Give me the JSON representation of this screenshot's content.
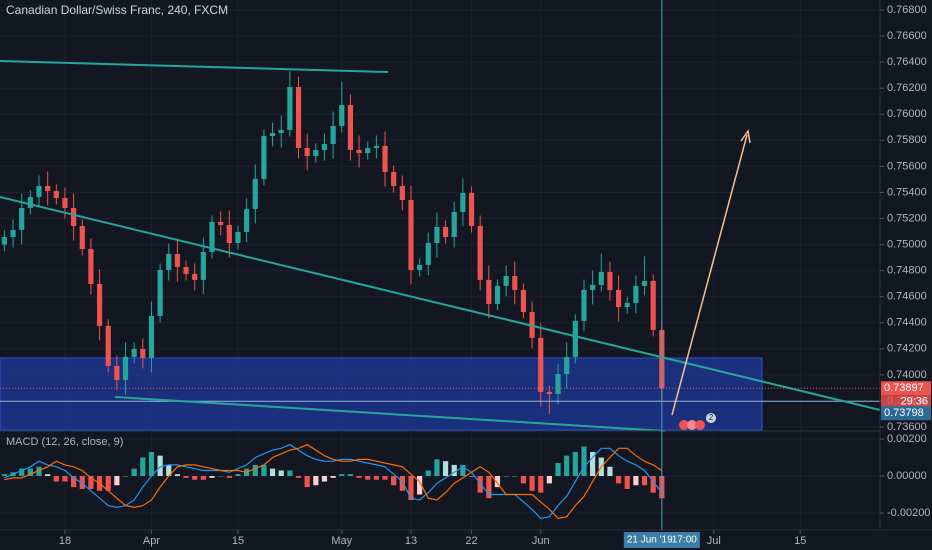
{
  "chart_data": [
    {
      "type": "candlestick",
      "title": "Canadian Dollar/Swiss Franc, 240, FXCM",
      "x": [
        -7,
        -6,
        -5,
        -4,
        -3,
        -2,
        -1,
        0,
        1,
        2,
        3,
        4,
        5,
        6,
        7,
        8,
        9,
        10,
        11,
        12,
        13,
        14,
        15,
        16,
        17,
        18,
        19,
        20,
        21,
        22,
        23,
        24,
        25,
        26,
        27,
        28,
        29,
        30,
        31,
        32,
        33,
        34,
        35,
        36,
        37,
        38,
        39,
        40,
        41,
        42,
        43,
        44,
        45,
        46,
        47,
        48,
        49,
        50,
        51,
        52,
        53,
        54,
        55,
        56,
        57,
        58,
        59,
        60,
        61,
        62,
        63,
        64,
        65,
        66,
        67,
        68,
        69
      ],
      "open": [
        0.75,
        0.75058,
        0.75112,
        0.75281,
        0.75365,
        0.7545,
        0.75411,
        0.75358,
        0.75281,
        0.75143,
        0.74966,
        0.74698,
        0.74376,
        0.74069,
        0.73961,
        0.74138,
        0.74199,
        0.7413,
        0.74452,
        0.74805,
        0.74928,
        0.74828,
        0.74775,
        0.74729,
        0.74943,
        0.75174,
        0.75151,
        0.75012,
        0.75097,
        0.75273,
        0.75504,
        0.75833,
        0.75856,
        0.7588,
        0.76209,
        0.75741,
        0.7568,
        0.75726,
        0.75772,
        0.7591,
        0.76071,
        0.75726,
        0.75702,
        0.75741,
        0.75757,
        0.75557,
        0.7545,
        0.75342,
        0.74805,
        0.74844,
        0.75012,
        0.75135,
        0.75058,
        0.7525,
        0.75396,
        0.75143,
        0.74729,
        0.74544,
        0.74683,
        0.74759,
        0.74652,
        0.74483,
        0.74284,
        0.73869,
        0.73854,
        0.74007,
        0.74138,
        0.74414,
        0.74652,
        0.7469,
        0.7479,
        0.74652,
        0.74521,
        0.74552,
        0.74683,
        0.74721,
        0.74345
      ],
      "high": [
        0.75108,
        0.75192,
        0.75391,
        0.75415,
        0.7553,
        0.75561,
        0.75461,
        0.75438,
        0.75392,
        0.75193,
        0.75046,
        0.74809,
        0.74426,
        0.74149,
        0.74249,
        0.74249,
        0.74279,
        0.74563,
        0.74855,
        0.75008,
        0.75039,
        0.74878,
        0.74855,
        0.75054,
        0.75224,
        0.75254,
        0.75262,
        0.75147,
        0.75353,
        0.75615,
        0.75883,
        0.75936,
        0.75991,
        0.7633,
        0.76289,
        0.75852,
        0.75776,
        0.75852,
        0.76021,
        0.7625,
        0.76151,
        0.75837,
        0.75791,
        0.75837,
        0.75868,
        0.75607,
        0.7553,
        0.75453,
        0.74894,
        0.75092,
        0.75246,
        0.75185,
        0.7533,
        0.75507,
        0.75446,
        0.75223,
        0.7484,
        0.74733,
        0.74839,
        0.7487,
        0.74702,
        0.74563,
        0.74395,
        0.73919,
        0.74087,
        0.74249,
        0.74464,
        0.74732,
        0.74801,
        0.7493,
        0.7487,
        0.74763,
        0.74602,
        0.74763,
        0.7491,
        0.74771,
        0.74425
      ],
      "low": [
        0.7495,
        0.74978,
        0.75002,
        0.75231,
        0.75285,
        0.75301,
        0.75308,
        0.75201,
        0.75032,
        0.74916,
        0.74618,
        0.74265,
        0.74019,
        0.73881,
        0.7385,
        0.74088,
        0.7405,
        0.74019,
        0.74402,
        0.74725,
        0.74717,
        0.74725,
        0.74649,
        0.74618,
        0.74893,
        0.75071,
        0.74901,
        0.74962,
        0.75017,
        0.75162,
        0.75454,
        0.75753,
        0.75745,
        0.7583,
        0.75661,
        0.75569,
        0.7563,
        0.75646,
        0.75661,
        0.7586,
        0.75646,
        0.75591,
        0.75652,
        0.75661,
        0.75446,
        0.754,
        0.75262,
        0.74694,
        0.74755,
        0.74764,
        0.74901,
        0.75008,
        0.74978,
        0.75139,
        0.75093,
        0.74649,
        0.74433,
        0.74494,
        0.74603,
        0.74541,
        0.74433,
        0.74204,
        0.73758,
        0.737,
        0.73774,
        0.73896,
        0.74088,
        0.74334,
        0.74541,
        0.7464,
        0.74572,
        0.7441,
        0.74471,
        0.74472,
        0.7461,
        0.74295,
        0.7378
      ],
      "close": [
        0.75058,
        0.75112,
        0.75281,
        0.75365,
        0.7545,
        0.75411,
        0.75358,
        0.75281,
        0.75143,
        0.74966,
        0.74698,
        0.74376,
        0.74069,
        0.73961,
        0.74138,
        0.74199,
        0.7413,
        0.74452,
        0.74805,
        0.74928,
        0.74828,
        0.74775,
        0.74729,
        0.74943,
        0.75174,
        0.75151,
        0.75012,
        0.75097,
        0.75273,
        0.75504,
        0.75833,
        0.75856,
        0.7588,
        0.76209,
        0.75741,
        0.7568,
        0.75726,
        0.75772,
        0.7591,
        0.76071,
        0.75726,
        0.75702,
        0.75741,
        0.75757,
        0.75557,
        0.7545,
        0.75342,
        0.74805,
        0.74844,
        0.75012,
        0.75135,
        0.75058,
        0.7525,
        0.75396,
        0.75143,
        0.74729,
        0.74544,
        0.74683,
        0.74759,
        0.74652,
        0.74483,
        0.74284,
        0.73869,
        0.73854,
        0.74007,
        0.74138,
        0.74414,
        0.74652,
        0.7469,
        0.7479,
        0.74652,
        0.74521,
        0.74552,
        0.74683,
        0.74721,
        0.74345,
        0.73897
      ],
      "up_color": "#26a69a",
      "down_color": "#ef5350",
      "xlim": [
        -7.51,
        94.22
      ],
      "xticks": [
        {
          "value": 0,
          "label": "18"
        },
        {
          "value": 10,
          "label": "Apr"
        },
        {
          "value": 20,
          "label": "15"
        },
        {
          "value": 32,
          "label": "May"
        },
        {
          "value": 40,
          "label": "13"
        },
        {
          "value": 47,
          "label": "22"
        },
        {
          "value": 55,
          "label": "Jun"
        },
        {
          "value": 75,
          "label": "Jul"
        },
        {
          "value": 85,
          "label": "15"
        }
      ],
      "ylim": [
        0.73577,
        0.76877
      ],
      "yticks": [
        {
          "value": 0.768,
          "label": "0.76800"
        },
        {
          "value": 0.766,
          "label": "0.76600"
        },
        {
          "value": 0.764,
          "label": "0.76400"
        },
        {
          "value": 0.762,
          "label": "0.76200"
        },
        {
          "value": 0.76,
          "label": "0.76000"
        },
        {
          "value": 0.758,
          "label": "0.75800"
        },
        {
          "value": 0.756,
          "label": "0.75600"
        },
        {
          "value": 0.754,
          "label": "0.75400"
        },
        {
          "value": 0.752,
          "label": "0.75200"
        },
        {
          "value": 0.75,
          "label": "0.75000"
        },
        {
          "value": 0.748,
          "label": "0.74800"
        },
        {
          "value": 0.746,
          "label": "0.74600"
        },
        {
          "value": 0.744,
          "label": "0.74400"
        },
        {
          "value": 0.742,
          "label": "0.74200"
        },
        {
          "value": 0.74,
          "label": "0.74000"
        },
        {
          "value": 0.738,
          "label": "0.73800"
        },
        {
          "value": 0.736,
          "label": "0.73600"
        }
      ],
      "grid": true,
      "last_price": 0.73897,
      "countdown": "29:36",
      "line_price": 0.73798,
      "crosshair": {
        "date": "21 Jun '19",
        "time": "17:00"
      },
      "badge": "2"
    },
    {
      "type": "macd",
      "title": "MACD (12, 26, close, 9)",
      "x": [
        -7,
        -6,
        -5,
        -4,
        -3,
        -2,
        -1,
        0,
        1,
        2,
        3,
        4,
        5,
        6,
        7,
        8,
        9,
        10,
        11,
        12,
        13,
        14,
        15,
        16,
        17,
        18,
        19,
        20,
        21,
        22,
        23,
        24,
        25,
        26,
        27,
        28,
        29,
        30,
        31,
        32,
        33,
        34,
        35,
        36,
        37,
        38,
        39,
        40,
        41,
        42,
        43,
        44,
        45,
        46,
        47,
        48,
        49,
        50,
        51,
        52,
        53,
        54,
        55,
        56,
        57,
        58,
        59,
        60,
        61,
        62,
        63,
        64,
        65,
        66,
        67,
        68,
        69
      ],
      "xlim": [
        -7.51,
        94.22
      ],
      "series": [
        {
          "style": "histogram",
          "values": [
            0.0001,
            0.0002,
            0.0004,
            0.0004,
            0.0005,
            0.0001,
            -0.0003,
            -0.0003,
            -0.0006,
            -0.0007,
            -0.0007,
            -0.0008,
            -0.0008,
            -0.0005,
            0,
            0.0004,
            0.001,
            0.0013,
            0.0011,
            0.0006,
            0.0001,
            -0.0001,
            -0.0002,
            -0.0002,
            -0.0001,
            0,
            -0.0001,
            0.0001,
            0.0004,
            0.0006,
            0.0006,
            0.0004,
            0.0003,
            0.0003,
            -0.0001,
            -0.0006,
            -0.0005,
            -0.0003,
            -0.0001,
            0.0001,
            0.0001,
            -0.0001,
            -0.0002,
            -0.0002,
            -0.0002,
            -0.0005,
            -0.0008,
            -0.0013,
            -0.001,
            0.0003,
            0.0009,
            0.0008,
            0.0006,
            0.0006,
            0,
            -0.0009,
            -0.0012,
            -0.0006,
            0,
            0,
            -0.0004,
            -0.0008,
            -0.0009,
            -0.0004,
            0.0007,
            0.0011,
            0.0013,
            0.0016,
            0.0013,
            0.001,
            0.0005,
            -0.0004,
            -0.0007,
            -0.0005,
            -0.0005,
            -0.0009,
            -0.0012
          ]
        },
        {
          "style": "line",
          "color": "#2196f3",
          "values": [
            -0.0001,
            0.0001,
            0.0003,
            0.0005,
            0.0008,
            0.0006,
            0.0005,
            0.0003,
            -0.0001,
            -0.0004,
            -0.0008,
            -0.0012,
            -0.0016,
            -0.0017,
            -0.0016,
            -0.0013,
            -0.0006,
            0,
            0.0005,
            0.0006,
            0.0006,
            0.0005,
            0.0004,
            0.0003,
            0.0003,
            0.0003,
            0.0002,
            0.0004,
            0.0006,
            0.001,
            0.0012,
            0.0014,
            0.0015,
            0.0017,
            0.0014,
            0.0011,
            0.0009,
            0.0008,
            0.0008,
            0.0009,
            0.0009,
            0.0008,
            0.0007,
            0.0006,
            0.0005,
            0.0001,
            -0.0003,
            -0.0012,
            -0.0013,
            -0.0009,
            -0.0004,
            -0.0001,
            0.0002,
            0.0005,
            0.0002,
            -0.0004,
            -0.001,
            -0.001,
            -0.001,
            -0.001,
            -0.0014,
            -0.0018,
            -0.0023,
            -0.0022,
            -0.0016,
            -0.0011,
            -0.0003,
            0.0005,
            0.001,
            0.0015,
            0.0015,
            0.0011,
            0.0008,
            0.0006,
            0.0003,
            -0.0003,
            -0.0009
          ]
        },
        {
          "style": "line",
          "color": "#ff6d00",
          "values": [
            -0.0002,
            -0.0001,
            -0.0001,
            0.0001,
            0.0003,
            0.0005,
            0.0008,
            0.0006,
            0.0005,
            0.0003,
            -0.0001,
            -0.0004,
            -0.0008,
            -0.0012,
            -0.0016,
            -0.0017,
            -0.0016,
            -0.0013,
            -0.0006,
            0,
            0.0005,
            0.0006,
            0.0006,
            0.0005,
            0.0004,
            0.0003,
            0.0003,
            0.0003,
            0.0002,
            0.0004,
            0.0006,
            0.001,
            0.0012,
            0.0014,
            0.0015,
            0.0017,
            0.0014,
            0.0011,
            0.0009,
            0.0008,
            0.0008,
            0.0009,
            0.0009,
            0.0008,
            0.0007,
            0.0006,
            0.0005,
            0.0001,
            -0.0003,
            -0.0012,
            -0.0013,
            -0.0009,
            -0.0004,
            -0.0001,
            0.0002,
            0.0005,
            0.0002,
            -0.0004,
            -0.001,
            -0.001,
            -0.001,
            -0.001,
            -0.0014,
            -0.0018,
            -0.0023,
            -0.0022,
            -0.0016,
            -0.0011,
            -0.0003,
            0.0005,
            0.001,
            0.0015,
            0.0015,
            0.0011,
            0.0008,
            0.0006,
            0.0003
          ]
        }
      ],
      "ylim": [
        -0.00292,
        0.00238
      ],
      "yticks": [
        {
          "value": 0.002,
          "label": "0.00200"
        },
        {
          "value": 0,
          "label": "0.00000"
        },
        {
          "value": -0.002,
          "label": "-0.00200"
        }
      ],
      "grid": true
    }
  ]
}
